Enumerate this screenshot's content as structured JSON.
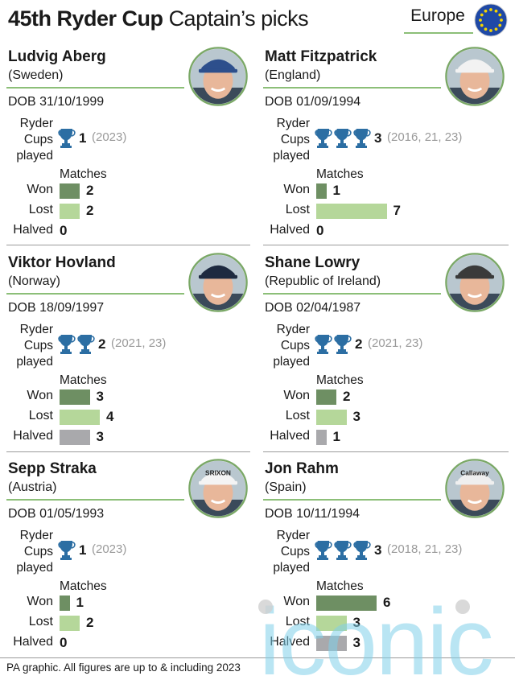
{
  "header": {
    "title_bold": "45th Ryder Cup",
    "title_light": "Captain’s picks",
    "region": "Europe"
  },
  "colors": {
    "won": "#6e8f63",
    "lost": "#b5d79a",
    "halved": "#a9a9ac",
    "accent_line": "#8cbf78",
    "trophy": "#2c6ea3",
    "years": "#9a9a9a"
  },
  "labels": {
    "ryder_cups": [
      "Ryder",
      "Cups",
      "played"
    ],
    "matches": "Matches",
    "won": "Won",
    "lost": "Lost",
    "halved": "Halved"
  },
  "players": [
    {
      "name": "Ludvig Aberg",
      "country": "(Sweden)",
      "dob": "DOB 31/10/1999",
      "cups": 1,
      "cups_text": "1",
      "years": "(2023)",
      "won": 2,
      "lost": 2,
      "halved": 0,
      "won_text": "2",
      "lost_text": "2",
      "halved_text": "0",
      "cap": "#2d4f8c",
      "cap_text": ""
    },
    {
      "name": "Matt Fitzpatrick",
      "country": "(England)",
      "dob": "DOB 01/09/1994",
      "cups": 3,
      "cups_text": "3",
      "years": "(2016, 21, 23)",
      "won": 1,
      "lost": 7,
      "halved": 0,
      "won_text": "1",
      "lost_text": "7",
      "halved_text": "0",
      "cap": "#f2f2f2",
      "cap_text": ""
    },
    {
      "name": "Viktor Hovland",
      "country": "(Norway)",
      "dob": "DOB 18/09/1997",
      "cups": 2,
      "cups_text": "2",
      "years": "(2021, 23)",
      "won": 3,
      "lost": 4,
      "halved": 3,
      "won_text": "3",
      "lost_text": "4",
      "halved_text": "3",
      "cap": "#1e2a40",
      "cap_text": ""
    },
    {
      "name": "Shane Lowry",
      "country": "(Republic of Ireland)",
      "dob": "DOB 02/04/1987",
      "cups": 2,
      "cups_text": "2",
      "years": "(2021, 23)",
      "won": 2,
      "lost": 3,
      "halved": 1,
      "won_text": "2",
      "lost_text": "3",
      "halved_text": "1",
      "cap": "#3a3a3a",
      "cap_text": ""
    },
    {
      "name": "Sepp Straka",
      "country": "(Austria)",
      "dob": "DOB 01/05/1993",
      "cups": 1,
      "cups_text": "1",
      "years": "(2023)",
      "won": 1,
      "lost": 2,
      "halved": 0,
      "won_text": "1",
      "lost_text": "2",
      "halved_text": "0",
      "cap": "#f4f4f4",
      "cap_text": "SRIXON"
    },
    {
      "name": "Jon Rahm",
      "country": "(Spain)",
      "dob": "DOB 10/11/1994",
      "cups": 3,
      "cups_text": "3",
      "years": "(2018, 21, 23)",
      "won": 6,
      "lost": 3,
      "halved": 3,
      "won_text": "6",
      "lost_text": "3",
      "halved_text": "3",
      "cap": "#efefef",
      "cap_text": "Callaway"
    }
  ],
  "footer": "PA graphic. All figures are up to & including 2023",
  "watermark": "iconic"
}
